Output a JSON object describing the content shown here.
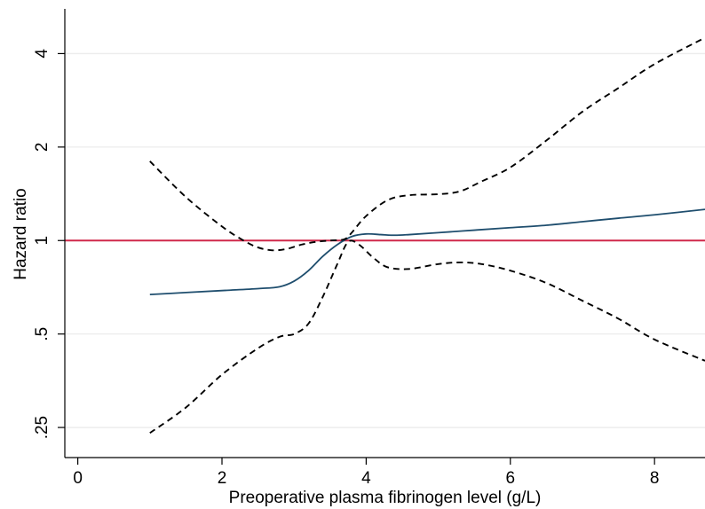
{
  "chart_data": {
    "type": "line",
    "xlabel": "Preoperative plasma fibrinogen level (g/L)",
    "ylabel": "Hazard ratio",
    "x_ticks": [
      {
        "value": 0,
        "label": "0"
      },
      {
        "value": 2,
        "label": "2"
      },
      {
        "value": 4,
        "label": "4"
      },
      {
        "value": 6,
        "label": "6"
      },
      {
        "value": 8,
        "label": "8"
      }
    ],
    "y_ticks": [
      {
        "value": 0.25,
        "label": ".25"
      },
      {
        "value": 0.5,
        "label": ".5"
      },
      {
        "value": 1,
        "label": "1"
      },
      {
        "value": 2,
        "label": "2"
      },
      {
        "value": 4,
        "label": "4"
      }
    ],
    "xlim": [
      -0.18,
      8.7
    ],
    "ylim": [
      0.2,
      5.5
    ],
    "y_scale": "log",
    "grid": true,
    "reference_line": {
      "y": 1,
      "color": "#d0284a"
    },
    "series": [
      {
        "style": "solid",
        "color": "#1f4e6e",
        "x": [
          1.0,
          1.5,
          2.0,
          2.5,
          2.8,
          3.0,
          3.2,
          3.4,
          3.6,
          3.8,
          4.0,
          4.2,
          4.4,
          4.6,
          5.0,
          5.5,
          6.0,
          6.5,
          7.0,
          7.5,
          8.0,
          8.7
        ],
        "y": [
          0.67,
          0.68,
          0.69,
          0.7,
          0.71,
          0.74,
          0.8,
          0.89,
          0.97,
          1.03,
          1.05,
          1.045,
          1.04,
          1.045,
          1.06,
          1.08,
          1.1,
          1.12,
          1.15,
          1.18,
          1.21,
          1.26
        ]
      },
      {
        "style": "dashed",
        "color": "#000000",
        "x": [
          1.0,
          1.5,
          2.0,
          2.3,
          2.5,
          2.7,
          2.9,
          3.1,
          3.3,
          3.5,
          3.7,
          3.8,
          4.0,
          4.3,
          4.6,
          5.0,
          5.3,
          5.6,
          6.0,
          6.5,
          7.0,
          7.5,
          8.0,
          8.7
        ],
        "y": [
          1.8,
          1.38,
          1.11,
          1.0,
          0.95,
          0.93,
          0.94,
          0.97,
          0.99,
          1.0,
          1.01,
          1.06,
          1.2,
          1.35,
          1.4,
          1.41,
          1.44,
          1.55,
          1.72,
          2.1,
          2.6,
          3.1,
          3.7,
          4.5
        ]
      },
      {
        "style": "dashed",
        "color": "#000000",
        "x": [
          1.0,
          1.5,
          2.0,
          2.5,
          2.8,
          3.0,
          3.2,
          3.4,
          3.6,
          3.75,
          3.9,
          4.1,
          4.3,
          4.6,
          5.0,
          5.3,
          5.6,
          6.0,
          6.5,
          7.0,
          7.5,
          8.0,
          8.7
        ],
        "y": [
          0.24,
          0.29,
          0.37,
          0.45,
          0.49,
          0.5,
          0.54,
          0.66,
          0.84,
          0.99,
          0.97,
          0.88,
          0.82,
          0.81,
          0.84,
          0.85,
          0.84,
          0.8,
          0.73,
          0.64,
          0.56,
          0.48,
          0.41
        ]
      }
    ]
  }
}
